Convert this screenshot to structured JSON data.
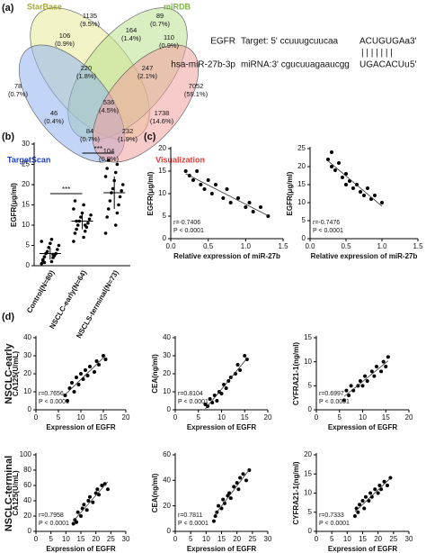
{
  "panel_labels": [
    "(a)",
    "(b)",
    "(c)",
    "(d)"
  ],
  "venn": {
    "sets": [
      {
        "name": "StarBase",
        "color": "#a9a93a"
      },
      {
        "name": "miRDB",
        "color": "#7cb342"
      },
      {
        "name": "TargetScan",
        "color": "#1e3fbf"
      },
      {
        "name": "Visualization",
        "color": "#e53935"
      }
    ],
    "regions": [
      {
        "count": 1135,
        "percent": "(9.5%)"
      },
      {
        "count": 89,
        "percent": "(0.7%)"
      },
      {
        "count": 106,
        "percent": "(0.9%)"
      },
      {
        "count": 164,
        "percent": "(1.4%)"
      },
      {
        "count": 110,
        "percent": "(0.9%)"
      },
      {
        "count": 78,
        "percent": "(0.7%)"
      },
      {
        "count": 220,
        "percent": "(1.8%)"
      },
      {
        "count": 247,
        "percent": "(2.1%)"
      },
      {
        "count": 7052,
        "percent": "(59.1%)"
      },
      {
        "count": 46,
        "percent": "(0.4%)"
      },
      {
        "count": 536,
        "percent": "(4.5%)"
      },
      {
        "count": 1738,
        "percent": "(14.6%)"
      },
      {
        "count": 84,
        "percent": "(0.7%)"
      },
      {
        "count": 232,
        "percent": "(1.9%)"
      },
      {
        "count": 104,
        "percent": "(0.9%)"
      }
    ]
  },
  "alignment": {
    "gene": "EGFR",
    "target_prefix": "Target: 5' ccuuugcuucaa",
    "target_seed": "ACUGUGAa",
    "target_end": "3'",
    "pairs": "| | | | | | |",
    "mirna": "hsa-miR-27b-3p",
    "mirna_prefix": "miRNA:3' cgucuuagaaucgg",
    "mirna_seed": "UGACACUu",
    "mirna_end": "5'"
  },
  "row_labels": [
    "NSCLC-early",
    "NSCLC-terminal"
  ],
  "chart_data": [
    {
      "type": "strip",
      "ylabel": "EGFR(μg/ml)",
      "categories": [
        "Control(N=80)",
        "NSCLC-early(N=64)",
        "NSCLS-terminal(N=73)"
      ],
      "values": [
        [
          0.5,
          1,
          1.5,
          2,
          2.2,
          2.5,
          3,
          3,
          3.5,
          4,
          4.5,
          5,
          5.5,
          6,
          6.5,
          1.2,
          2.8,
          0.8
        ],
        [
          6,
          7,
          8,
          8.5,
          9,
          9.5,
          10,
          10.5,
          11,
          11.5,
          12,
          12.5,
          13,
          14,
          15,
          16,
          10,
          11
        ],
        [
          8,
          10,
          12,
          13,
          14,
          15,
          16,
          17,
          18,
          18.5,
          19,
          20,
          21,
          22,
          23,
          24,
          25,
          26
        ]
      ],
      "means": [
        3,
        11,
        18
      ],
      "sds": [
        1.5,
        2,
        4
      ],
      "annotations": [
        "***",
        "***"
      ],
      "ylim": [
        0,
        30
      ],
      "yticks": [
        0,
        5,
        10,
        15,
        20,
        25,
        30
      ],
      "color": "#000000"
    },
    {
      "type": "scatter",
      "xlabel": "Relative expression of miR-27b",
      "ylabel": "EGFR(μg/ml)",
      "x": [
        0.2,
        0.25,
        0.3,
        0.35,
        0.4,
        0.45,
        0.5,
        0.55,
        0.6,
        0.7,
        0.75,
        0.8,
        0.9,
        1.0,
        1.05,
        1.1,
        1.2,
        1.3
      ],
      "values": [
        15,
        14,
        13,
        15,
        12,
        11,
        13,
        10,
        12,
        9,
        11,
        8,
        9,
        7,
        8,
        6,
        7,
        5
      ],
      "xlim": [
        0,
        1.5
      ],
      "xticks": [
        {
          "value": 0,
          "label": "0.0"
        },
        0.5,
        {
          "value": 1,
          "label": "1.0"
        },
        1.5
      ],
      "ylim": [
        0,
        20
      ],
      "yticks": [
        0,
        5,
        10,
        15,
        20
      ],
      "annotations": [
        "r=-0.7406",
        "P < 0.0001"
      ],
      "trendline": true,
      "color": "#000000"
    },
    {
      "type": "scatter",
      "xlabel": "Relative expression of miR-27b",
      "ylabel": "EGFR(μg/ml)",
      "x": [
        0.25,
        0.3,
        0.3,
        0.35,
        0.4,
        0.45,
        0.5,
        0.5,
        0.55,
        0.6,
        0.65,
        0.7,
        0.75,
        0.8,
        0.85,
        0.9,
        1.0
      ],
      "values": [
        22,
        20,
        24,
        19,
        21,
        17,
        18,
        15,
        16,
        14,
        15,
        13,
        12,
        14,
        11,
        12,
        10
      ],
      "xlim": [
        0,
        1.5
      ],
      "xticks": [
        {
          "value": 0,
          "label": "0.0"
        },
        0.5,
        {
          "value": 1,
          "label": "1.0"
        },
        1.5
      ],
      "ylim": [
        0,
        25
      ],
      "yticks": [
        0,
        5,
        10,
        15,
        20,
        25
      ],
      "annotations": [
        "r=-0.7476",
        "P < 0.0001"
      ],
      "trendline": true,
      "color": "#000000"
    },
    {
      "type": "scatter",
      "xlabel": "Expression of EGFR",
      "ylabel": "CA125(U/mL)",
      "x": [
        6.5,
        7,
        7.5,
        8,
        8.5,
        9,
        9.5,
        10,
        10.5,
        11,
        11.5,
        12,
        13,
        13.5,
        14,
        15,
        15.5
      ],
      "values": [
        8,
        5,
        12,
        15,
        10,
        18,
        14,
        20,
        17,
        22,
        19,
        24,
        21,
        27,
        25,
        30,
        28
      ],
      "xlim": [
        0,
        20
      ],
      "xticks": [
        0,
        5,
        10,
        15,
        20
      ],
      "ylim": [
        0,
        40
      ],
      "yticks": [
        0,
        10,
        20,
        30,
        40
      ],
      "annotations": [
        "r=0.7656",
        "P < 0.0001"
      ],
      "trendline": true,
      "color": "#000000"
    },
    {
      "type": "scatter",
      "xlabel": "Expression of EGFR",
      "ylabel": "CEA(ng/ml)",
      "x": [
        6.5,
        7,
        7.5,
        8,
        8.5,
        9,
        9.5,
        10,
        10.5,
        11,
        11.5,
        12,
        13,
        13.5,
        14,
        15,
        15.5
      ],
      "values": [
        3,
        2,
        6,
        4,
        8,
        5,
        10,
        9,
        14,
        12,
        16,
        18,
        20,
        25,
        22,
        30,
        28
      ],
      "xlim": [
        0,
        20
      ],
      "xticks": [
        0,
        5,
        10,
        15,
        20
      ],
      "ylim": [
        0,
        40
      ],
      "yticks": [
        0,
        10,
        20,
        30,
        40
      ],
      "annotations": [
        "r=0.8104",
        "P < 0.0001"
      ],
      "trendline": true,
      "color": "#000000"
    },
    {
      "type": "scatter",
      "xlabel": "Expression of EGFR",
      "ylabel": "CYFRA21-1(ng/ml)",
      "x": [
        6,
        6.5,
        7,
        7.5,
        8,
        9,
        9.5,
        10,
        10.5,
        11,
        12,
        12.5,
        13,
        14,
        14.5,
        15,
        15.5
      ],
      "values": [
        2,
        4,
        3,
        5,
        4,
        5,
        6,
        5,
        7,
        6,
        8,
        7,
        9,
        8,
        10,
        9,
        11
      ],
      "xlim": [
        0,
        20
      ],
      "xticks": [
        0,
        5,
        10,
        15,
        20
      ],
      "ylim": [
        0,
        15
      ],
      "yticks": [
        0,
        5,
        10,
        15
      ],
      "annotations": [
        "r=0.6997",
        "P < 0.0001"
      ],
      "trendline": true,
      "color": "#000000"
    },
    {
      "type": "scatter",
      "xlabel": "Expression of EGFR",
      "ylabel": "CA125(U/mL)",
      "x": [
        12.5,
        13,
        13.5,
        14,
        15,
        15.5,
        16,
        17,
        17.5,
        18,
        19,
        20,
        20.5,
        21,
        22,
        23,
        24
      ],
      "values": [
        10,
        15,
        12,
        25,
        20,
        30,
        35,
        28,
        40,
        45,
        38,
        50,
        55,
        48,
        60,
        62,
        55
      ],
      "xlim": [
        0,
        30
      ],
      "xticks": [
        0,
        5,
        10,
        15,
        20,
        25,
        30
      ],
      "ylim": [
        0,
        100
      ],
      "yticks": [
        0,
        20,
        40,
        60,
        80,
        100
      ],
      "annotations": [
        "r=0.7958",
        "P < 0.0001"
      ],
      "trendline": true,
      "color": "#000000"
    },
    {
      "type": "scatter",
      "xlabel": "Expression of EGFR",
      "ylabel": "CEA(ng/ml)",
      "x": [
        12.5,
        13,
        13.5,
        14,
        15,
        15.5,
        16,
        17,
        17.5,
        18,
        19,
        20,
        20.5,
        21,
        22,
        23,
        24
      ],
      "values": [
        8,
        12,
        15,
        20,
        18,
        25,
        22,
        28,
        30,
        26,
        35,
        38,
        33,
        42,
        45,
        40,
        48
      ],
      "xlim": [
        0,
        30
      ],
      "xticks": [
        0,
        5,
        10,
        15,
        20,
        25,
        30
      ],
      "ylim": [
        0,
        60
      ],
      "yticks": [
        0,
        20,
        40,
        60
      ],
      "annotations": [
        "r=0.7811",
        "P < 0.0001"
      ],
      "trendline": true,
      "color": "#000000"
    },
    {
      "type": "scatter",
      "xlabel": "Expression of EGFR",
      "ylabel": "CYFRA21-1(ng/ml)",
      "x": [
        12.5,
        13,
        13.5,
        14,
        15,
        15.5,
        16,
        17,
        17.5,
        18,
        19,
        20,
        20.5,
        21,
        22,
        23,
        24
      ],
      "values": [
        4,
        6,
        5,
        7,
        8,
        6,
        9,
        8,
        10,
        9,
        11,
        10,
        12,
        11,
        13,
        12,
        14
      ],
      "xlim": [
        0,
        30
      ],
      "xticks": [
        0,
        5,
        10,
        15,
        20,
        25,
        30
      ],
      "ylim": [
        0,
        20
      ],
      "yticks": [
        0,
        5,
        10,
        15,
        20
      ],
      "annotations": [
        "r=0.7333",
        "P < 0.0001"
      ],
      "trendline": true,
      "color": "#000000"
    }
  ]
}
